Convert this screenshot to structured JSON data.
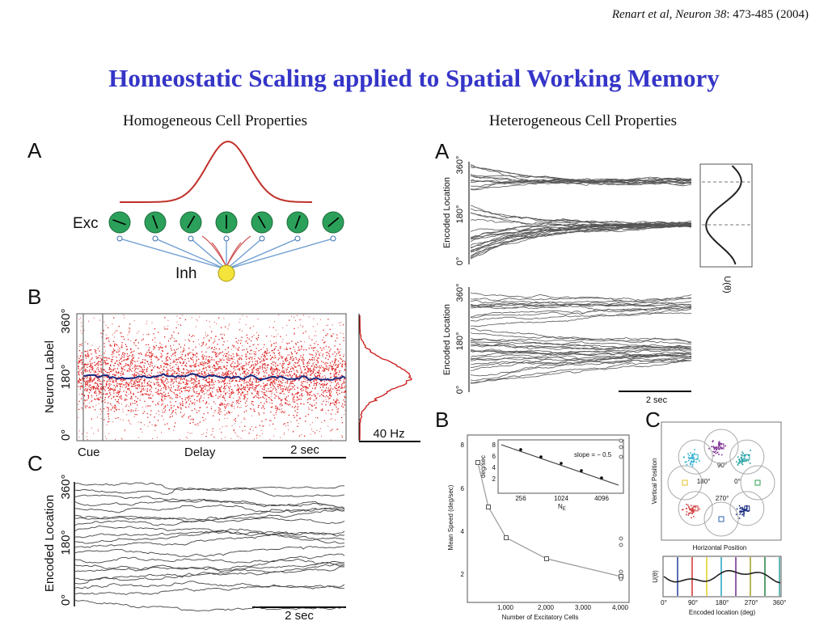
{
  "citation": {
    "authors": "Renart et al, Neuron 38",
    "pages": ": 473-485 (2004)"
  },
  "title": "Homeostatic Scaling applied to Spatial Working Memory",
  "headings": {
    "left": "Homogeneous Cell Properties",
    "right": "Heterogeneous Cell Properties"
  },
  "left": {
    "a": {
      "label": "A",
      "exc": "Exc",
      "inh": "Inh"
    },
    "b": {
      "label": "B",
      "ylabel": "Neuron Label",
      "yticks": [
        "360°",
        "180°",
        "0°"
      ],
      "scale": "40 Hz",
      "cue": "Cue",
      "delay": "Delay",
      "time": "2 sec"
    },
    "c": {
      "label": "C",
      "ylabel": "Encoded Location",
      "yticks": [
        "360°",
        "180°",
        "0°"
      ],
      "time": "2 sec"
    }
  },
  "right": {
    "a": {
      "label": "A",
      "ylabel": "Encoded Location",
      "yticks": [
        "360°",
        "180°",
        "0°"
      ],
      "potential": "U(θ)",
      "time": "2 sec"
    },
    "b": {
      "label": "B",
      "ylabel": "Mean Speed (deg/sec)",
      "yticks": [
        8,
        6,
        4,
        2
      ],
      "xticks": [
        "1,000",
        "2,000",
        "3,000",
        "4,000"
      ],
      "xlabel": "Number of Excitatory Cells",
      "inset": {
        "ylabel": "deg/sec",
        "yticks": [
          8,
          6,
          4,
          2
        ],
        "xticks": [
          256,
          1024,
          4096
        ],
        "xlabel": "N",
        "xsub": "E",
        "slope": "slope = − 0.5"
      }
    },
    "c": {
      "label": "C",
      "ylabel": "Vertical Position",
      "xlabel": "Horizontal Position",
      "angles": [
        "90°",
        "180°",
        "0°",
        "270°"
      ],
      "potential": "U(θ)",
      "xticks": [
        "0°",
        "90°",
        "180°",
        "270°",
        "360°"
      ],
      "xlabel2": "Encoded location (deg)"
    }
  }
}
